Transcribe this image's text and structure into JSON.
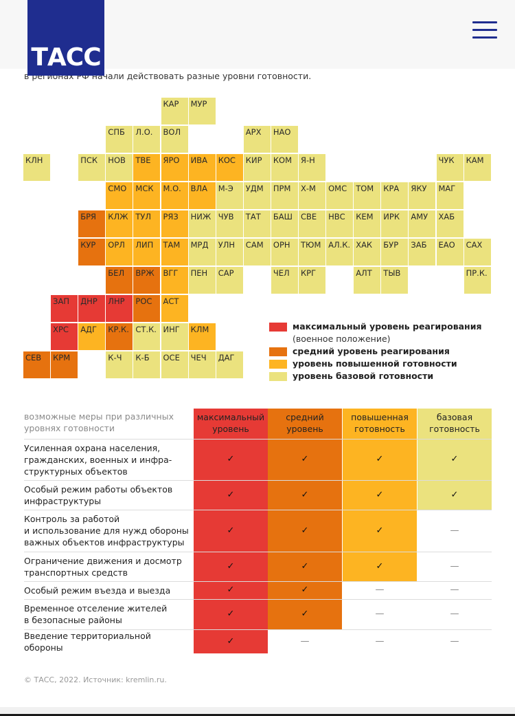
{
  "header": {
    "logo": "ТАСС"
  },
  "intro": "в регионах РФ начали действовать разные уровни готовности.",
  "colors": {
    "max": "#e63a35",
    "medium": "#e6720f",
    "high": "#fdb422",
    "base": "#ebe27e"
  },
  "map": [
    {
      "code": "КАР",
      "level": "base",
      "row": 0,
      "col": 5
    },
    {
      "code": "МУР",
      "level": "base",
      "row": 0,
      "col": 6
    },
    {
      "code": "СПБ",
      "level": "base",
      "row": 1,
      "col": 3
    },
    {
      "code": "Л.О.",
      "level": "base",
      "row": 1,
      "col": 4
    },
    {
      "code": "ВОЛ",
      "level": "base",
      "row": 1,
      "col": 5
    },
    {
      "code": "АРХ",
      "level": "base",
      "row": 1,
      "col": 8
    },
    {
      "code": "НАО",
      "level": "base",
      "row": 1,
      "col": 9
    },
    {
      "code": "КЛН",
      "level": "base",
      "row": 2,
      "col": 0
    },
    {
      "code": "ПСК",
      "level": "base",
      "row": 2,
      "col": 2
    },
    {
      "code": "НОВ",
      "level": "base",
      "row": 2,
      "col": 3
    },
    {
      "code": "ТВЕ",
      "level": "high",
      "row": 2,
      "col": 4
    },
    {
      "code": "ЯРО",
      "level": "high",
      "row": 2,
      "col": 5
    },
    {
      "code": "ИВА",
      "level": "high",
      "row": 2,
      "col": 6
    },
    {
      "code": "КОС",
      "level": "high",
      "row": 2,
      "col": 7
    },
    {
      "code": "КИР",
      "level": "base",
      "row": 2,
      "col": 8
    },
    {
      "code": "КОМ",
      "level": "base",
      "row": 2,
      "col": 9
    },
    {
      "code": "Я-Н",
      "level": "base",
      "row": 2,
      "col": 10
    },
    {
      "code": "ЧУК",
      "level": "base",
      "row": 2,
      "col": 15
    },
    {
      "code": "КАМ",
      "level": "base",
      "row": 2,
      "col": 16
    },
    {
      "code": "СМО",
      "level": "high",
      "row": 3,
      "col": 3
    },
    {
      "code": "МСК",
      "level": "high",
      "row": 3,
      "col": 4
    },
    {
      "code": "М.О.",
      "level": "high",
      "row": 3,
      "col": 5
    },
    {
      "code": "ВЛА",
      "level": "high",
      "row": 3,
      "col": 6
    },
    {
      "code": "М-Э",
      "level": "base",
      "row": 3,
      "col": 7
    },
    {
      "code": "УДМ",
      "level": "base",
      "row": 3,
      "col": 8
    },
    {
      "code": "ПРМ",
      "level": "base",
      "row": 3,
      "col": 9
    },
    {
      "code": "Х-М",
      "level": "base",
      "row": 3,
      "col": 10
    },
    {
      "code": "ОМС",
      "level": "base",
      "row": 3,
      "col": 11
    },
    {
      "code": "ТОМ",
      "level": "base",
      "row": 3,
      "col": 12
    },
    {
      "code": "КРА",
      "level": "base",
      "row": 3,
      "col": 13
    },
    {
      "code": "ЯКУ",
      "level": "base",
      "row": 3,
      "col": 14
    },
    {
      "code": "МАГ",
      "level": "base",
      "row": 3,
      "col": 15
    },
    {
      "code": "БРЯ",
      "level": "medium",
      "row": 4,
      "col": 2
    },
    {
      "code": "КЛЖ",
      "level": "high",
      "row": 4,
      "col": 3
    },
    {
      "code": "ТУЛ",
      "level": "high",
      "row": 4,
      "col": 4
    },
    {
      "code": "РЯЗ",
      "level": "high",
      "row": 4,
      "col": 5
    },
    {
      "code": "НИЖ",
      "level": "base",
      "row": 4,
      "col": 6
    },
    {
      "code": "ЧУВ",
      "level": "base",
      "row": 4,
      "col": 7
    },
    {
      "code": "ТАТ",
      "level": "base",
      "row": 4,
      "col": 8
    },
    {
      "code": "БАШ",
      "level": "base",
      "row": 4,
      "col": 9
    },
    {
      "code": "СВЕ",
      "level": "base",
      "row": 4,
      "col": 10
    },
    {
      "code": "НВС",
      "level": "base",
      "row": 4,
      "col": 11
    },
    {
      "code": "КЕМ",
      "level": "base",
      "row": 4,
      "col": 12
    },
    {
      "code": "ИРК",
      "level": "base",
      "row": 4,
      "col": 13
    },
    {
      "code": "АМУ",
      "level": "base",
      "row": 4,
      "col": 14
    },
    {
      "code": "ХАБ",
      "level": "base",
      "row": 4,
      "col": 15
    },
    {
      "code": "КУР",
      "level": "medium",
      "row": 5,
      "col": 2
    },
    {
      "code": "ОРЛ",
      "level": "high",
      "row": 5,
      "col": 3
    },
    {
      "code": "ЛИП",
      "level": "high",
      "row": 5,
      "col": 4
    },
    {
      "code": "ТАМ",
      "level": "high",
      "row": 5,
      "col": 5
    },
    {
      "code": "МРД",
      "level": "base",
      "row": 5,
      "col": 6
    },
    {
      "code": "УЛН",
      "level": "base",
      "row": 5,
      "col": 7
    },
    {
      "code": "САМ",
      "level": "base",
      "row": 5,
      "col": 8
    },
    {
      "code": "ОРН",
      "level": "base",
      "row": 5,
      "col": 9
    },
    {
      "code": "ТЮМ",
      "level": "base",
      "row": 5,
      "col": 10
    },
    {
      "code": "АЛ.К.",
      "level": "base",
      "row": 5,
      "col": 11
    },
    {
      "code": "ХАК",
      "level": "base",
      "row": 5,
      "col": 12
    },
    {
      "code": "БУР",
      "level": "base",
      "row": 5,
      "col": 13
    },
    {
      "code": "ЗАБ",
      "level": "base",
      "row": 5,
      "col": 14
    },
    {
      "code": "ЕАО",
      "level": "base",
      "row": 5,
      "col": 15
    },
    {
      "code": "САХ",
      "level": "base",
      "row": 5,
      "col": 16
    },
    {
      "code": "БЕЛ",
      "level": "medium",
      "row": 6,
      "col": 3
    },
    {
      "code": "ВРЖ",
      "level": "medium",
      "row": 6,
      "col": 4
    },
    {
      "code": "ВГГ",
      "level": "high",
      "row": 6,
      "col": 5
    },
    {
      "code": "ПЕН",
      "level": "base",
      "row": 6,
      "col": 6
    },
    {
      "code": "САР",
      "level": "base",
      "row": 6,
      "col": 7
    },
    {
      "code": "ЧЕЛ",
      "level": "base",
      "row": 6,
      "col": 9
    },
    {
      "code": "КРГ",
      "level": "base",
      "row": 6,
      "col": 10
    },
    {
      "code": "АЛТ",
      "level": "base",
      "row": 6,
      "col": 12
    },
    {
      "code": "ТЫВ",
      "level": "base",
      "row": 6,
      "col": 13
    },
    {
      "code": "ПР.К.",
      "level": "base",
      "row": 6,
      "col": 16
    },
    {
      "code": "ЗАП",
      "level": "max",
      "row": 7,
      "col": 1
    },
    {
      "code": "ДНР",
      "level": "max",
      "row": 7,
      "col": 2
    },
    {
      "code": "ЛНР",
      "level": "max",
      "row": 7,
      "col": 3
    },
    {
      "code": "РОС",
      "level": "medium",
      "row": 7,
      "col": 4
    },
    {
      "code": "АСТ",
      "level": "high",
      "row": 7,
      "col": 5
    },
    {
      "code": "ХРС",
      "level": "max",
      "row": 8,
      "col": 1
    },
    {
      "code": "АДГ",
      "level": "high",
      "row": 8,
      "col": 2
    },
    {
      "code": "КР.К.",
      "level": "medium",
      "row": 8,
      "col": 3
    },
    {
      "code": "СТ.К.",
      "level": "base",
      "row": 8,
      "col": 4
    },
    {
      "code": "ИНГ",
      "level": "base",
      "row": 8,
      "col": 5
    },
    {
      "code": "КЛМ",
      "level": "high",
      "row": 8,
      "col": 6
    },
    {
      "code": "СЕВ",
      "level": "medium",
      "row": 9,
      "col": 0
    },
    {
      "code": "КРМ",
      "level": "medium",
      "row": 9,
      "col": 1
    },
    {
      "code": "К-Ч",
      "level": "base",
      "row": 9,
      "col": 3
    },
    {
      "code": "К-Б",
      "level": "base",
      "row": 9,
      "col": 4
    },
    {
      "code": "ОСЕ",
      "level": "base",
      "row": 9,
      "col": 5
    },
    {
      "code": "ЧЕЧ",
      "level": "base",
      "row": 9,
      "col": 6
    },
    {
      "code": "ДАГ",
      "level": "base",
      "row": 9,
      "col": 7
    }
  ],
  "legend": [
    {
      "level": "max",
      "label": "максимальный уровень реагирования",
      "note": "(военное положение)"
    },
    {
      "level": "medium",
      "label": "средний уровень реагирования"
    },
    {
      "level": "high",
      "label": "уровень повышенной готовности"
    },
    {
      "level": "base",
      "label": "уровень базовой готовности"
    }
  ],
  "table": {
    "header_label": [
      "возможные меры при различных",
      "уровнях готовности"
    ],
    "columns": [
      {
        "level": "max",
        "label": [
          "максимальный",
          "уровень"
        ]
      },
      {
        "level": "medium",
        "label": [
          "средний",
          "уровень"
        ]
      },
      {
        "level": "high",
        "label": [
          "повышенная",
          "готовность"
        ]
      },
      {
        "level": "base",
        "label": [
          "базовая",
          "готовность"
        ]
      }
    ],
    "check_symbol": "✓",
    "dash_symbol": "—",
    "rows": [
      {
        "label": [
          "Усиленная охрана населения,",
          "гражданских, военных и инфра-",
          "структурных объектов"
        ],
        "values": [
          true,
          true,
          true,
          true
        ]
      },
      {
        "label": [
          "Особый режим работы объектов",
          "инфраструктуры"
        ],
        "values": [
          true,
          true,
          true,
          true
        ]
      },
      {
        "label": [
          "Контроль за работой",
          "и использование для нужд обороны",
          "важных объектов инфраструктуры"
        ],
        "values": [
          true,
          true,
          true,
          false
        ]
      },
      {
        "label": [
          "Ограничение движения и досмотр",
          "транспортных средств"
        ],
        "values": [
          true,
          true,
          true,
          false
        ]
      },
      {
        "label": [
          "Особый режим въезда и выезда"
        ],
        "values": [
          true,
          true,
          false,
          false
        ]
      },
      {
        "label": [
          "Временное отселение жителей",
          "в безопасные районы"
        ],
        "values": [
          true,
          true,
          false,
          false
        ]
      },
      {
        "label": [
          "Введение территориальной",
          "обороны"
        ],
        "values": [
          true,
          false,
          false,
          false
        ]
      }
    ]
  },
  "footer": "© ТАСС, 2022. Источник: kremlin.ru."
}
